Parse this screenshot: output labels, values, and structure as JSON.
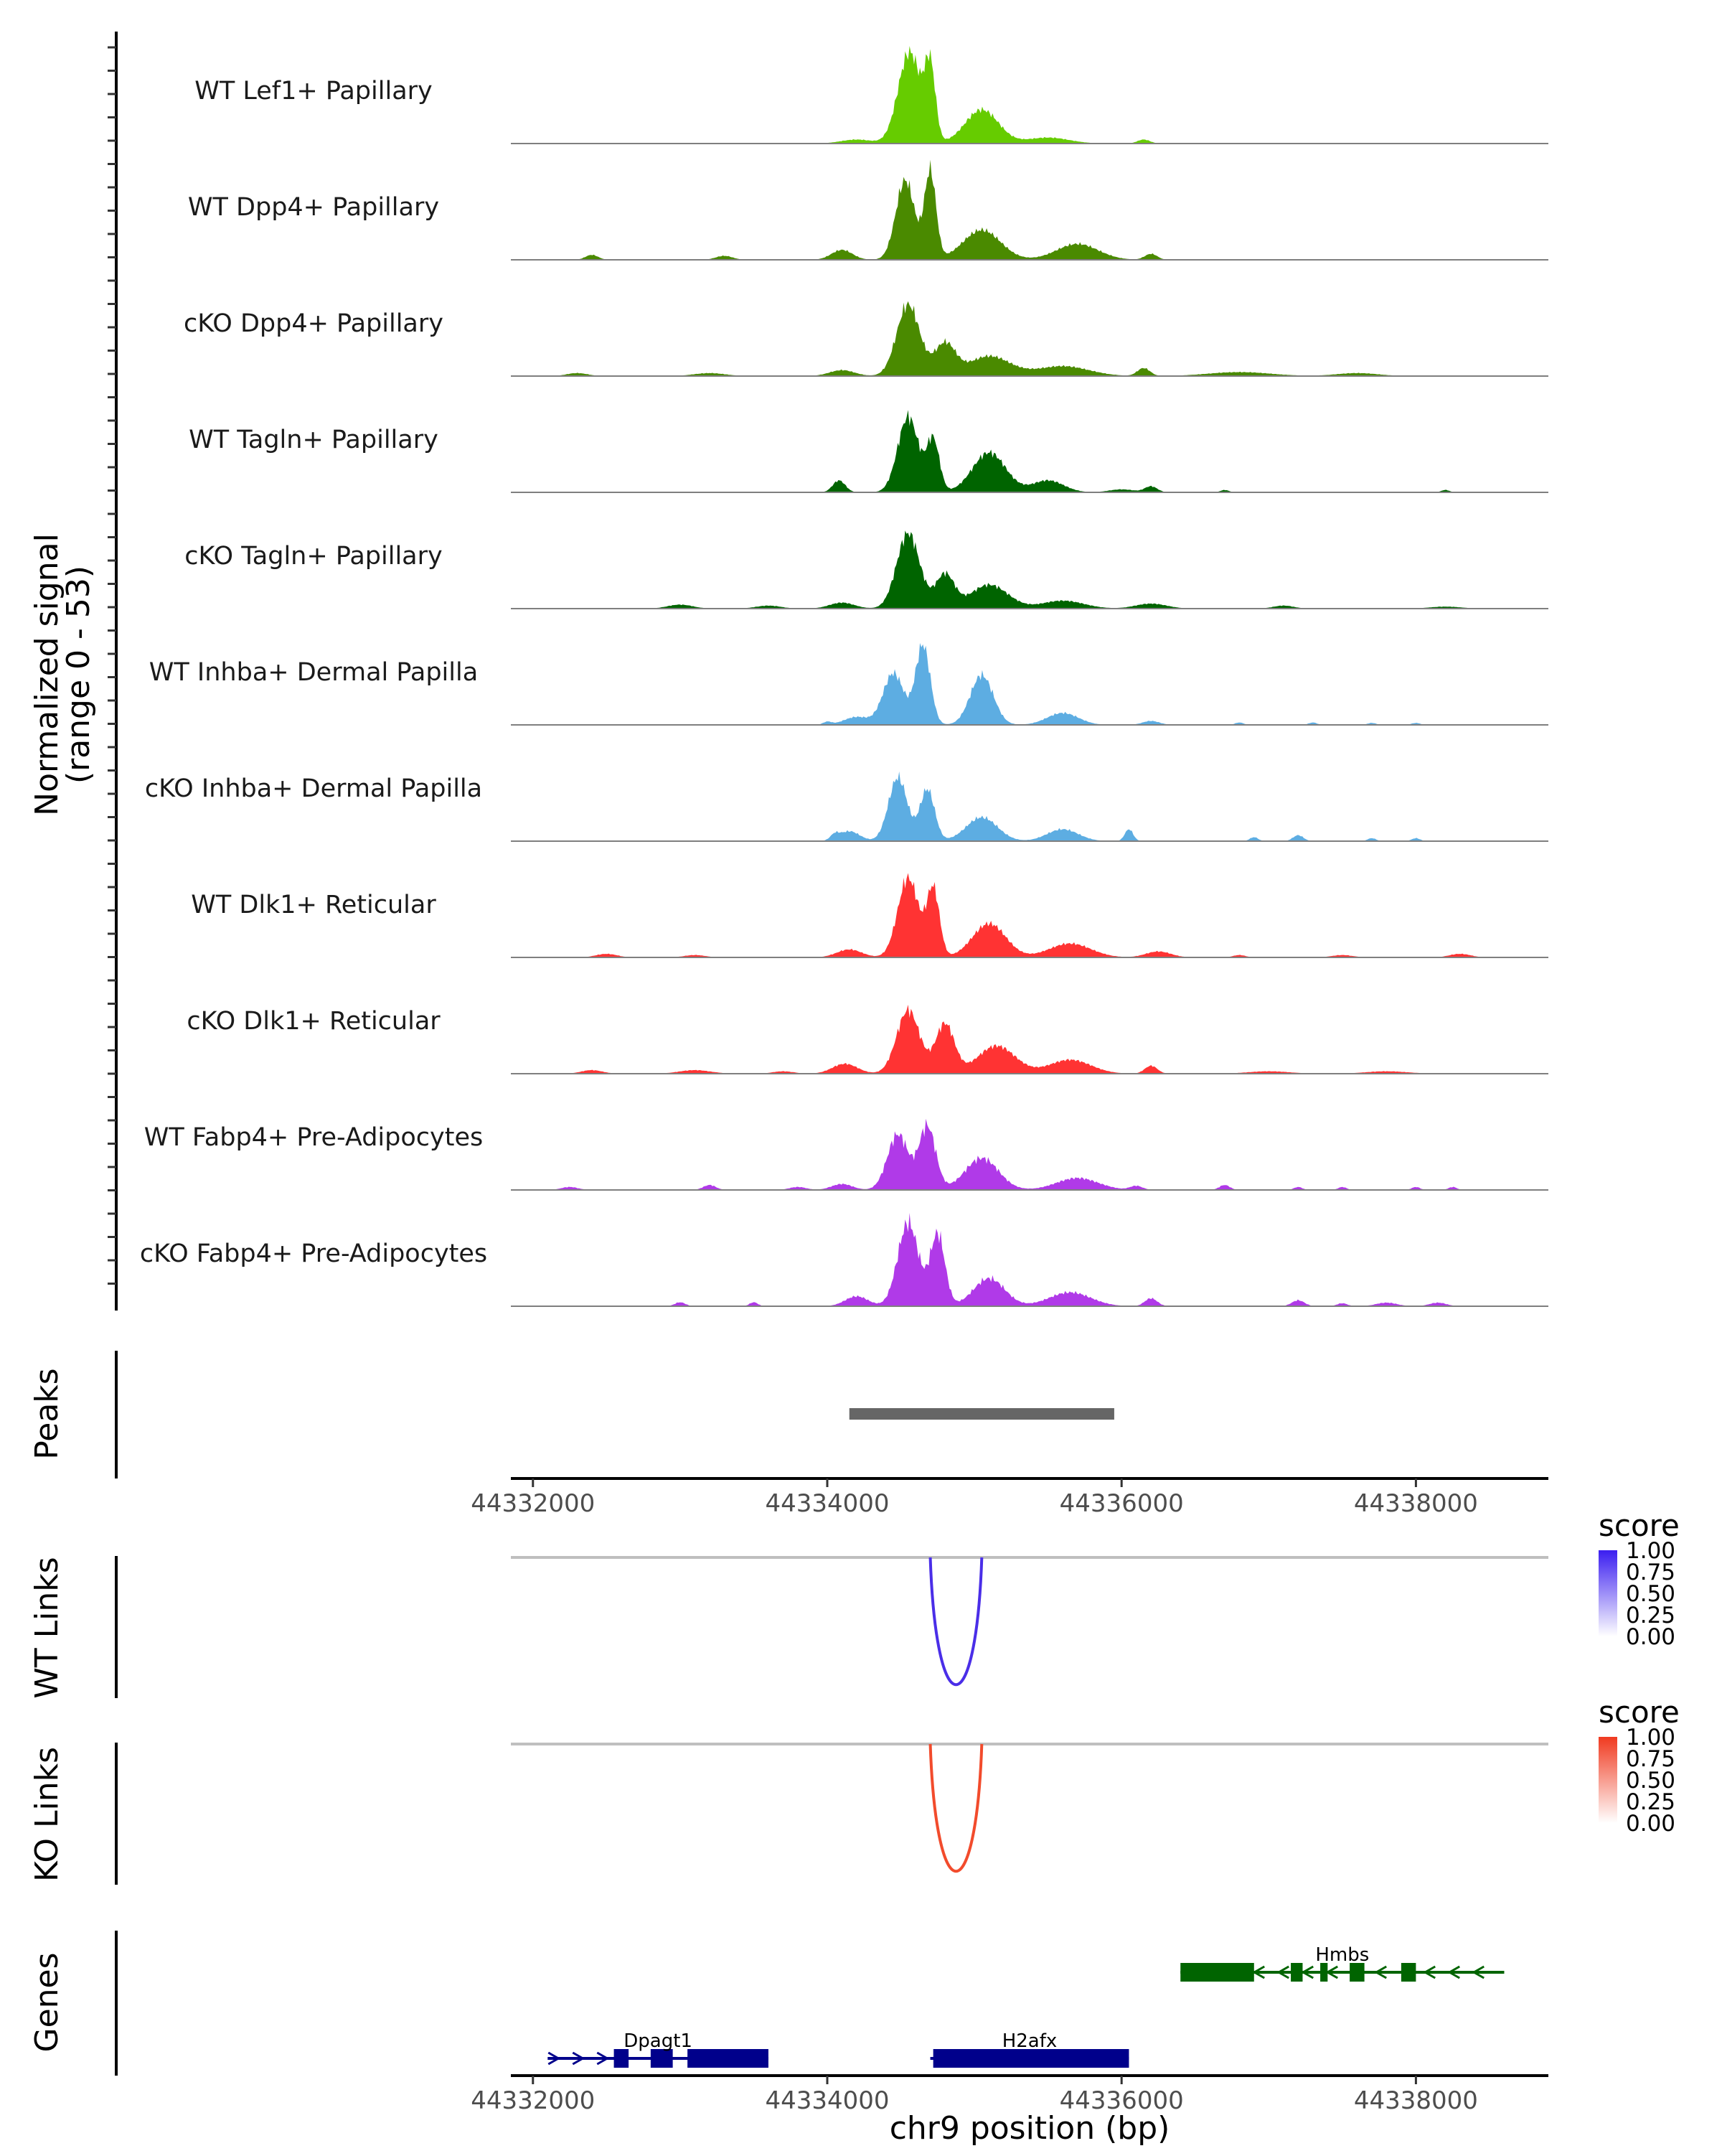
{
  "chart_data": {
    "type": "area",
    "title": "",
    "chromosome": "chr9",
    "xlabel": "chr9 position (bp)",
    "xlim": [
      44331850,
      44338900
    ],
    "xticks": [
      44332000,
      44334000,
      44336000,
      44338000
    ],
    "xtick_labels": [
      "44332000",
      "44334000",
      "44336000",
      "44338000"
    ],
    "ylabel": "Normalized signal",
    "ylabel_range": "(range 0 - 53)",
    "ylim": [
      0,
      53
    ],
    "coverage_tracks": [
      {
        "name": "WT Lef1+ Papillary",
        "color": "#66cc00",
        "peaks": [
          [
            44334560,
            46,
            110
          ],
          [
            44334700,
            35,
            50
          ],
          [
            44335050,
            17,
            160
          ],
          [
            44335500,
            3,
            200
          ],
          [
            44334200,
            2,
            150
          ],
          [
            44336150,
            2,
            60
          ]
        ],
        "spike": 0.12,
        "blips": []
      },
      {
        "name": "WT Dpp4+ Papillary",
        "color": "#4a8a00",
        "peaks": [
          [
            44334530,
            40,
            90
          ],
          [
            44334700,
            44,
            55
          ],
          [
            44335050,
            15,
            180
          ],
          [
            44335700,
            8,
            200
          ],
          [
            44334100,
            5,
            100
          ],
          [
            44336200,
            3,
            60
          ]
        ],
        "spike": 0.12,
        "blips": [
          [
            44332400,
            2.5,
            60
          ],
          [
            44333300,
            2,
            80
          ]
        ]
      },
      {
        "name": "cKO Dpp4+ Papillary",
        "color": "#4a8a00",
        "peaks": [
          [
            44334550,
            36,
            110
          ],
          [
            44334800,
            16,
            100
          ],
          [
            44335100,
            10,
            200
          ],
          [
            44335600,
            5,
            250
          ],
          [
            44334100,
            3,
            120
          ],
          [
            44336150,
            4,
            60
          ],
          [
            44336800,
            2,
            300
          ]
        ],
        "spike": 0.12,
        "blips": [
          [
            44332300,
            1.5,
            100
          ],
          [
            44333200,
            1.5,
            150
          ],
          [
            44337600,
            1.5,
            200
          ]
        ]
      },
      {
        "name": "WT Tagln+ Papillary",
        "color": "#006400",
        "peaks": [
          [
            44334550,
            38,
            100
          ],
          [
            44334720,
            26,
            60
          ],
          [
            44335100,
            20,
            160
          ],
          [
            44335500,
            6,
            150
          ],
          [
            44334080,
            6,
            60
          ],
          [
            44336000,
            1.5,
            120
          ],
          [
            44336200,
            3,
            60
          ]
        ],
        "spike": 0.12,
        "blips": [
          [
            44336700,
            1.2,
            40
          ],
          [
            44338200,
            1.2,
            40
          ]
        ]
      },
      {
        "name": "cKO Tagln+ Papillary",
        "color": "#006400",
        "peaks": [
          [
            44334550,
            38,
            110
          ],
          [
            44334800,
            17,
            90
          ],
          [
            44335100,
            12,
            180
          ],
          [
            44335600,
            4,
            200
          ],
          [
            44334100,
            3,
            120
          ],
          [
            44336200,
            2.5,
            150
          ]
        ],
        "spike": 0.12,
        "blips": [
          [
            44333000,
            2,
            120
          ],
          [
            44333600,
            1.5,
            120
          ],
          [
            44337100,
            1.5,
            100
          ],
          [
            44338200,
            1,
            150
          ]
        ]
      },
      {
        "name": "WT Inhba+ Dermal Papilla",
        "color": "#5dade2",
        "peaks": [
          [
            44334450,
            26,
            100
          ],
          [
            44334650,
            40,
            70
          ],
          [
            44335050,
            25,
            110
          ],
          [
            44335600,
            6,
            150
          ],
          [
            44334200,
            4,
            120
          ],
          [
            44336200,
            2,
            80
          ]
        ],
        "spike": 0.12,
        "blips": [
          [
            44334000,
            1.5,
            40
          ],
          [
            44336800,
            1.2,
            40
          ],
          [
            44337300,
            1.2,
            40
          ],
          [
            44337700,
            1,
            40
          ],
          [
            44338000,
            1,
            40
          ]
        ]
      },
      {
        "name": "cKO Inhba+ Dermal Papilla",
        "color": "#5dade2",
        "peaks": [
          [
            44334480,
            32,
            90
          ],
          [
            44334680,
            26,
            70
          ],
          [
            44335050,
            12,
            150
          ],
          [
            44335600,
            6,
            150
          ],
          [
            44334150,
            5,
            100
          ],
          [
            44336050,
            6,
            40
          ]
        ],
        "spike": 0.12,
        "blips": [
          [
            44334050,
            2.5,
            40
          ],
          [
            44336900,
            2,
            40
          ],
          [
            44337200,
            3,
            50
          ],
          [
            44337700,
            1.5,
            40
          ],
          [
            44338000,
            1.5,
            40
          ]
        ]
      },
      {
        "name": "WT Dlk1+ Reticular",
        "color": "#ff3333",
        "peaks": [
          [
            44334550,
            40,
            100
          ],
          [
            44334720,
            34,
            60
          ],
          [
            44335100,
            17,
            160
          ],
          [
            44335650,
            7,
            200
          ],
          [
            44334150,
            4,
            120
          ],
          [
            44336250,
            3,
            120
          ]
        ],
        "spike": 0.12,
        "blips": [
          [
            44332500,
            1.8,
            100
          ],
          [
            44333100,
            1.2,
            100
          ],
          [
            44336800,
            1.2,
            60
          ],
          [
            44337500,
            1.2,
            100
          ],
          [
            44338300,
            1.8,
            100
          ]
        ]
      },
      {
        "name": "cKO Dlk1+ Reticular",
        "color": "#ff3333",
        "peaks": [
          [
            44334550,
            32,
            110
          ],
          [
            44334800,
            25,
            90
          ],
          [
            44335150,
            14,
            180
          ],
          [
            44335650,
            7,
            200
          ],
          [
            44334120,
            5,
            120
          ],
          [
            44336200,
            4,
            60
          ]
        ],
        "spike": 0.12,
        "blips": [
          [
            44332400,
            1.8,
            100
          ],
          [
            44333100,
            1.8,
            150
          ],
          [
            44333700,
            1.2,
            100
          ],
          [
            44337000,
            1.2,
            200
          ],
          [
            44337800,
            1.2,
            200
          ]
        ]
      },
      {
        "name": "WT Fabp4+ Pre-Adipocytes",
        "color": "#b03ae8",
        "peaks": [
          [
            44334480,
            28,
            100
          ],
          [
            44334680,
            32,
            80
          ],
          [
            44335050,
            16,
            160
          ],
          [
            44335700,
            6,
            200
          ],
          [
            44334100,
            3,
            100
          ],
          [
            44336100,
            2,
            60
          ]
        ],
        "spike": 0.15,
        "blips": [
          [
            44332250,
            1.5,
            80
          ],
          [
            44333200,
            2.5,
            60
          ],
          [
            44333800,
            1.5,
            80
          ],
          [
            44336700,
            2.5,
            50
          ],
          [
            44337200,
            1.5,
            40
          ],
          [
            44337500,
            1.5,
            40
          ],
          [
            44338000,
            1.5,
            40
          ],
          [
            44338250,
            1.5,
            40
          ]
        ]
      },
      {
        "name": "cKO Fabp4+ Pre-Adipocytes",
        "color": "#b03ae8",
        "peaks": [
          [
            44334550,
            42,
            100
          ],
          [
            44334750,
            36,
            70
          ],
          [
            44335100,
            14,
            150
          ],
          [
            44335650,
            7,
            200
          ],
          [
            44334200,
            5,
            110
          ],
          [
            44336200,
            4,
            60
          ]
        ],
        "spike": 0.15,
        "blips": [
          [
            44333000,
            2,
            50
          ],
          [
            44333500,
            2,
            40
          ],
          [
            44337200,
            3,
            60
          ],
          [
            44337500,
            1.5,
            50
          ],
          [
            44337800,
            1.8,
            100
          ],
          [
            44338150,
            1.8,
            80
          ]
        ]
      }
    ],
    "peaks_track": {
      "label": "Peaks",
      "regions": [
        {
          "start": 44334150,
          "end": 44335950
        }
      ],
      "color": "#666666"
    },
    "link_tracks": [
      {
        "label": "WT Links",
        "color": "#4a2ee8",
        "start": 44334700,
        "end": 44335050,
        "score": 0.85,
        "legend": {
          "title": "score",
          "ticks": [
            "1.00",
            "0.75",
            "0.50",
            "0.25",
            "0.00"
          ],
          "color_high": "#3b1ef0",
          "color_low": "#ffffff"
        }
      },
      {
        "label": "KO Links",
        "color": "#f24b2c",
        "start": 44334700,
        "end": 44335050,
        "score": 0.85,
        "legend": {
          "title": "score",
          "ticks": [
            "1.00",
            "0.75",
            "0.50",
            "0.25",
            "0.00"
          ],
          "color_high": "#f03a20",
          "color_low": "#ffffff"
        }
      }
    ],
    "genes_track": {
      "label": "Genes",
      "genes": [
        {
          "name": "Hmbs",
          "strand": "-",
          "color": "#006400",
          "row": 1,
          "start": 44336400,
          "end": 44338600,
          "exons": [
            [
              44336400,
              44336900
            ],
            [
              44337150,
              44337230
            ],
            [
              44337350,
              44337400
            ],
            [
              44337550,
              44337650
            ],
            [
              44337900,
              44338000
            ]
          ]
        },
        {
          "name": "Dpagt1",
          "strand": "+",
          "color": "#00008b",
          "row": 2,
          "start": 44332100,
          "end": 44333600,
          "exons": [
            [
              44332550,
              44332650
            ],
            [
              44332800,
              44332950
            ],
            [
              44333050,
              44333600
            ]
          ]
        },
        {
          "name": "H2afx",
          "strand": "+",
          "color": "#00008b",
          "row": 2,
          "start": 44334700,
          "end": 44336050,
          "exons": [
            [
              44334720,
              44336050
            ]
          ]
        }
      ]
    }
  }
}
